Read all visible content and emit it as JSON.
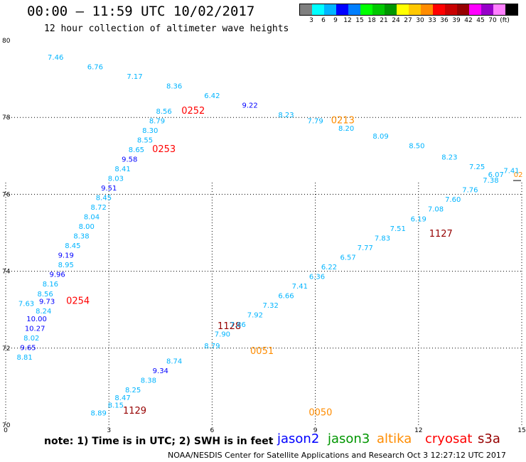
{
  "header": {
    "title": "00:00 — 11:59 UTC 10/02/2017",
    "subtitle": "12 hour collection of altimeter wave heights"
  },
  "legend": {
    "colors": [
      "#7f7f7f",
      "#00ffff",
      "#00b4ff",
      "#0000ff",
      "#007fff",
      "#00ff00",
      "#00c800",
      "#009600",
      "#ffff00",
      "#ffc800",
      "#ff8c00",
      "#ff0000",
      "#c80000",
      "#960000",
      "#ff00ff",
      "#9600c8",
      "#ff80ff",
      "#000000"
    ],
    "labels": [
      "3",
      "6",
      "9",
      "12",
      "15",
      "18",
      "21",
      "24",
      "27",
      "30",
      "33",
      "36",
      "39",
      "42",
      "45",
      "70",
      "(ft)"
    ]
  },
  "axes": {
    "y_labels": [
      "80",
      "78",
      "76",
      "74",
      "72",
      "70"
    ],
    "x_labels": [
      "0",
      "3",
      "6",
      "9",
      "12",
      "15"
    ]
  },
  "chart_data": {
    "type": "scatter",
    "xlabel": "",
    "ylabel": "",
    "xlim": [
      0,
      15
    ],
    "ylim": [
      70,
      80
    ],
    "points": [
      {
        "x": 1.45,
        "y": 79.5,
        "label": "7.46",
        "color": "#00b4ff"
      },
      {
        "x": 2.6,
        "y": 79.25,
        "label": "6.76",
        "color": "#00b4ff"
      },
      {
        "x": 3.75,
        "y": 79.0,
        "label": "7.17",
        "color": "#00b4ff"
      },
      {
        "x": 4.9,
        "y": 78.75,
        "label": "8.36",
        "color": "#00b4ff"
      },
      {
        "x": 6.0,
        "y": 78.5,
        "label": "6.42",
        "color": "#00b4ff"
      },
      {
        "x": 7.1,
        "y": 78.25,
        "label": "9.22",
        "color": "#0000ff"
      },
      {
        "x": 8.15,
        "y": 78.0,
        "label": "8.23",
        "color": "#00b4ff"
      },
      {
        "x": 9.0,
        "y": 77.85,
        "label": "7.79",
        "color": "#00b4ff"
      },
      {
        "x": 9.8,
        "y": 77.85,
        "label": "0213",
        "color": "#ff8c00"
      },
      {
        "x": 9.9,
        "y": 77.65,
        "label": "8.20",
        "color": "#00b4ff"
      },
      {
        "x": 10.9,
        "y": 77.45,
        "label": "8.09",
        "color": "#00b4ff"
      },
      {
        "x": 11.95,
        "y": 77.2,
        "label": "8.50",
        "color": "#00b4ff"
      },
      {
        "x": 12.9,
        "y": 76.9,
        "label": "8.23",
        "color": "#00b4ff"
      },
      {
        "x": 13.7,
        "y": 76.65,
        "label": "7.25",
        "color": "#00b4ff"
      },
      {
        "x": 14.25,
        "y": 76.45,
        "label": "6.07",
        "color": "#00b4ff"
      },
      {
        "x": 14.9,
        "y": 76.45,
        "label": "02",
        "color": "#ff8c00"
      },
      {
        "x": 4.6,
        "y": 78.1,
        "label": "8.56",
        "color": "#00b4ff"
      },
      {
        "x": 5.45,
        "y": 78.1,
        "label": "0252",
        "color": "#ff0000"
      },
      {
        "x": 4.4,
        "y": 77.85,
        "label": "8.79",
        "color": "#00b4ff"
      },
      {
        "x": 4.2,
        "y": 77.6,
        "label": "8.30",
        "color": "#00b4ff"
      },
      {
        "x": 4.05,
        "y": 77.35,
        "label": "8.55",
        "color": "#00b4ff"
      },
      {
        "x": 3.8,
        "y": 77.1,
        "label": "8.65",
        "color": "#00b4ff"
      },
      {
        "x": 4.6,
        "y": 77.1,
        "label": "0253",
        "color": "#ff0000"
      },
      {
        "x": 3.6,
        "y": 76.85,
        "label": "9.58",
        "color": "#0000ff"
      },
      {
        "x": 3.4,
        "y": 76.6,
        "label": "8.41",
        "color": "#00b4ff"
      },
      {
        "x": 3.2,
        "y": 76.35,
        "label": "8.03",
        "color": "#00b4ff"
      },
      {
        "x": 3.0,
        "y": 76.1,
        "label": "9.51",
        "color": "#0000ff"
      },
      {
        "x": 2.85,
        "y": 75.85,
        "label": "8.45",
        "color": "#00b4ff"
      },
      {
        "x": 2.7,
        "y": 75.6,
        "label": "8.72",
        "color": "#00b4ff"
      },
      {
        "x": 2.5,
        "y": 75.35,
        "label": "8.04",
        "color": "#00b4ff"
      },
      {
        "x": 2.35,
        "y": 75.1,
        "label": "8.00",
        "color": "#00b4ff"
      },
      {
        "x": 2.2,
        "y": 74.85,
        "label": "8.38",
        "color": "#00b4ff"
      },
      {
        "x": 1.95,
        "y": 74.6,
        "label": "8.45",
        "color": "#00b4ff"
      },
      {
        "x": 1.75,
        "y": 74.35,
        "label": "9.19",
        "color": "#0000ff"
      },
      {
        "x": 1.75,
        "y": 74.1,
        "label": "8.95",
        "color": "#00b4ff"
      },
      {
        "x": 1.5,
        "y": 73.85,
        "label": "9.96",
        "color": "#0000ff"
      },
      {
        "x": 1.3,
        "y": 73.6,
        "label": "8.16",
        "color": "#00b4ff"
      },
      {
        "x": 1.15,
        "y": 73.35,
        "label": "8.56",
        "color": "#00b4ff"
      },
      {
        "x": 1.2,
        "y": 73.15,
        "label": "9.73",
        "color": "#0000ff"
      },
      {
        "x": 2.1,
        "y": 73.15,
        "label": "0254",
        "color": "#ff0000"
      },
      {
        "x": 0.6,
        "y": 73.1,
        "label": "7.63",
        "color": "#00b4ff"
      },
      {
        "x": 1.1,
        "y": 72.9,
        "label": "8.24",
        "color": "#00b4ff"
      },
      {
        "x": 0.9,
        "y": 72.7,
        "label": "10.00",
        "color": "#0000ff"
      },
      {
        "x": 0.85,
        "y": 72.45,
        "label": "10.27",
        "color": "#0000ff"
      },
      {
        "x": 0.75,
        "y": 72.2,
        "label": "8.02",
        "color": "#00b4ff"
      },
      {
        "x": 0.65,
        "y": 71.95,
        "label": "9.65",
        "color": "#0000ff"
      },
      {
        "x": 0.55,
        "y": 71.7,
        "label": "8.81",
        "color": "#00b4ff"
      },
      {
        "x": 6.5,
        "y": 72.5,
        "label": "1128",
        "color": "#960000"
      },
      {
        "x": 12.65,
        "y": 74.9,
        "label": "1127",
        "color": "#960000"
      },
      {
        "x": 3.75,
        "y": 70.3,
        "label": "1129",
        "color": "#960000"
      },
      {
        "x": 2.7,
        "y": 70.25,
        "label": "8.89",
        "color": "#00b4ff"
      },
      {
        "x": 3.2,
        "y": 70.45,
        "label": "8.15",
        "color": "#00b4ff"
      },
      {
        "x": 3.4,
        "y": 70.65,
        "label": "8.47",
        "color": "#00b4ff"
      },
      {
        "x": 3.7,
        "y": 70.85,
        "label": "8.25",
        "color": "#00b4ff"
      },
      {
        "x": 4.15,
        "y": 71.1,
        "label": "8.38",
        "color": "#00b4ff"
      },
      {
        "x": 4.5,
        "y": 71.35,
        "label": "9.34",
        "color": "#0000ff"
      },
      {
        "x": 4.9,
        "y": 71.6,
        "label": "8.74",
        "color": "#00b4ff"
      },
      {
        "x": 6.0,
        "y": 72.0,
        "label": "8.79",
        "color": "#00b4ff"
      },
      {
        "x": 6.3,
        "y": 72.3,
        "label": "7.90",
        "color": "#00b4ff"
      },
      {
        "x": 6.75,
        "y": 72.55,
        "label": "7.86",
        "color": "#00b4ff"
      },
      {
        "x": 7.25,
        "y": 72.8,
        "label": "7.92",
        "color": "#00b4ff"
      },
      {
        "x": 7.7,
        "y": 73.05,
        "label": "7.32",
        "color": "#00b4ff"
      },
      {
        "x": 8.15,
        "y": 73.3,
        "label": "6.66",
        "color": "#00b4ff"
      },
      {
        "x": 8.55,
        "y": 73.55,
        "label": "7.41",
        "color": "#00b4ff"
      },
      {
        "x": 9.05,
        "y": 73.8,
        "label": "6.36",
        "color": "#00b4ff"
      },
      {
        "x": 9.4,
        "y": 74.05,
        "label": "6.22",
        "color": "#00b4ff"
      },
      {
        "x": 9.95,
        "y": 74.3,
        "label": "6.57",
        "color": "#00b4ff"
      },
      {
        "x": 10.45,
        "y": 74.55,
        "label": "7.77",
        "color": "#00b4ff"
      },
      {
        "x": 10.95,
        "y": 74.8,
        "label": "7.83",
        "color": "#00b4ff"
      },
      {
        "x": 11.4,
        "y": 75.05,
        "label": "7.51",
        "color": "#00b4ff"
      },
      {
        "x": 12.0,
        "y": 75.3,
        "label": "6.19",
        "color": "#00b4ff"
      },
      {
        "x": 12.5,
        "y": 75.55,
        "label": "7.08",
        "color": "#00b4ff"
      },
      {
        "x": 13.0,
        "y": 75.8,
        "label": "7.60",
        "color": "#00b4ff"
      },
      {
        "x": 13.5,
        "y": 76.05,
        "label": "7.76",
        "color": "#00b4ff"
      },
      {
        "x": 14.1,
        "y": 76.3,
        "label": "7.38",
        "color": "#00b4ff"
      },
      {
        "x": 14.7,
        "y": 76.55,
        "label": "7.41",
        "color": "#00b4ff"
      },
      {
        "x": 7.45,
        "y": 71.85,
        "label": "0051",
        "color": "#ff8c00"
      },
      {
        "x": 9.15,
        "y": 70.25,
        "label": "0050",
        "color": "#ff8c00"
      }
    ]
  },
  "note": "note: 1) Time is in UTC; 2) SWH is in feet",
  "satellites": [
    {
      "name": "jason2",
      "color": "#0000ff"
    },
    {
      "name": "jason3",
      "color": "#009600"
    },
    {
      "name": "altika",
      "color": "#ff8c00"
    },
    {
      "name": "cryosat",
      "color": "#ff0000"
    },
    {
      "name": "s3a",
      "color": "#960000"
    }
  ],
  "footer": "NOAA/NESDIS Center for Satellite Applications and Research    Oct  3 12:27:12 UTC 2017"
}
